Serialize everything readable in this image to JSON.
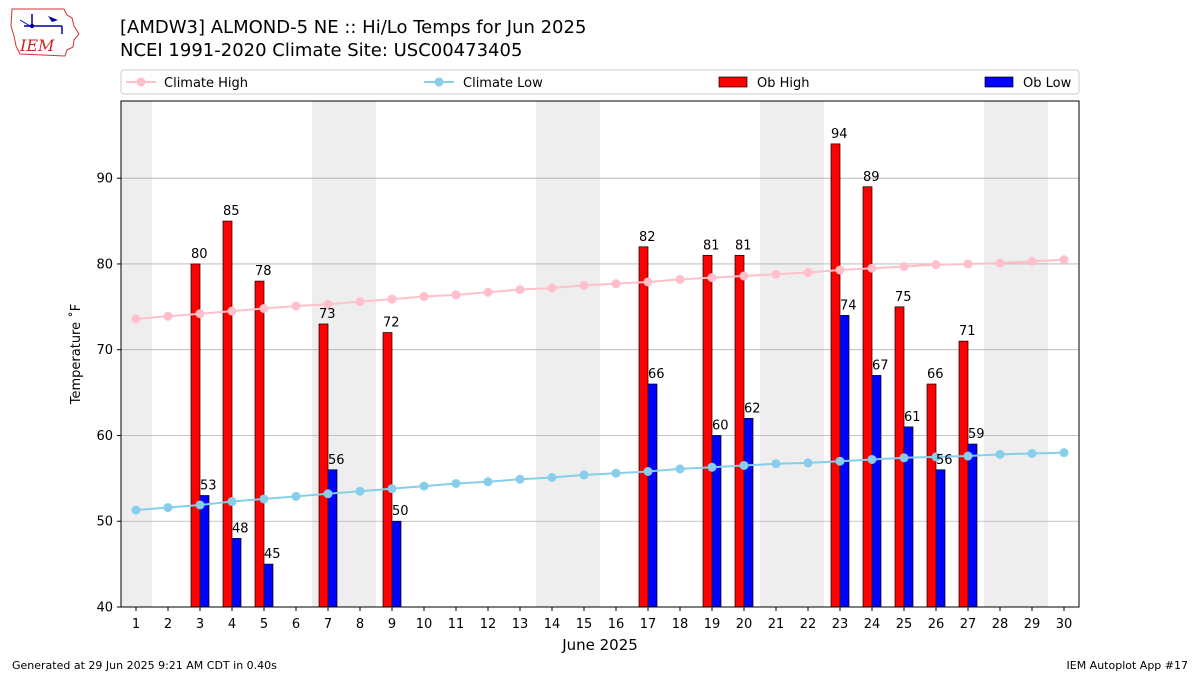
{
  "logo": {
    "text": "IEM"
  },
  "title_line1": "[AMDW3] ALMOND-5 NE :: Hi/Lo Temps for Jun 2025",
  "title_line2": "NCEI 1991-2020 Climate Site: USC00473405",
  "footer_left": "Generated at 29 Jun 2025 9:21 AM CDT in 0.40s",
  "footer_right": "IEM Autoplot App #17",
  "colors": {
    "ob_high": "#ff0000",
    "ob_low": "#0000ff",
    "climate_high": "#ffc0cb",
    "climate_low": "#87ceeb",
    "weekend_shade": "#eeeeee",
    "grid": "#b0b0b0"
  },
  "chart_data": {
    "type": "bar",
    "xlabel": "June 2025",
    "ylabel": "Temperature ˚F",
    "ylim": [
      40,
      99
    ],
    "yticks": [
      40,
      50,
      60,
      70,
      80,
      90
    ],
    "grid": "horizontal",
    "legend_position": "top",
    "weekend_days": [
      1,
      7,
      8,
      14,
      15,
      21,
      22,
      28,
      29
    ],
    "days": [
      1,
      2,
      3,
      4,
      5,
      6,
      7,
      8,
      9,
      10,
      11,
      12,
      13,
      14,
      15,
      16,
      17,
      18,
      19,
      20,
      21,
      22,
      23,
      24,
      25,
      26,
      27,
      28,
      29,
      30
    ],
    "series": [
      {
        "name": "Ob High",
        "kind": "bar",
        "values": [
          null,
          null,
          80,
          85,
          78,
          null,
          73,
          null,
          72,
          null,
          null,
          null,
          null,
          null,
          null,
          null,
          82,
          null,
          81,
          81,
          null,
          null,
          94,
          89,
          75,
          66,
          71,
          null,
          null,
          null
        ]
      },
      {
        "name": "Ob Low",
        "kind": "bar",
        "values": [
          null,
          null,
          53,
          48,
          45,
          null,
          56,
          null,
          50,
          null,
          null,
          null,
          null,
          null,
          null,
          null,
          66,
          null,
          60,
          62,
          null,
          null,
          74,
          67,
          61,
          56,
          59,
          null,
          null,
          null
        ]
      },
      {
        "name": "Climate High",
        "kind": "line",
        "values": [
          73.6,
          73.9,
          74.2,
          74.5,
          74.8,
          75.1,
          75.3,
          75.6,
          75.9,
          76.2,
          76.4,
          76.7,
          77.0,
          77.2,
          77.5,
          77.7,
          77.9,
          78.2,
          78.4,
          78.6,
          78.8,
          79.0,
          79.3,
          79.5,
          79.7,
          79.9,
          80.0,
          80.1,
          80.3,
          80.5
        ]
      },
      {
        "name": "Climate Low",
        "kind": "line",
        "values": [
          51.3,
          51.6,
          51.9,
          52.3,
          52.6,
          52.9,
          53.2,
          53.5,
          53.8,
          54.1,
          54.4,
          54.6,
          54.9,
          55.1,
          55.4,
          55.6,
          55.8,
          56.1,
          56.3,
          56.5,
          56.7,
          56.8,
          57.0,
          57.2,
          57.4,
          57.5,
          57.6,
          57.8,
          57.9,
          58.0
        ]
      }
    ]
  }
}
